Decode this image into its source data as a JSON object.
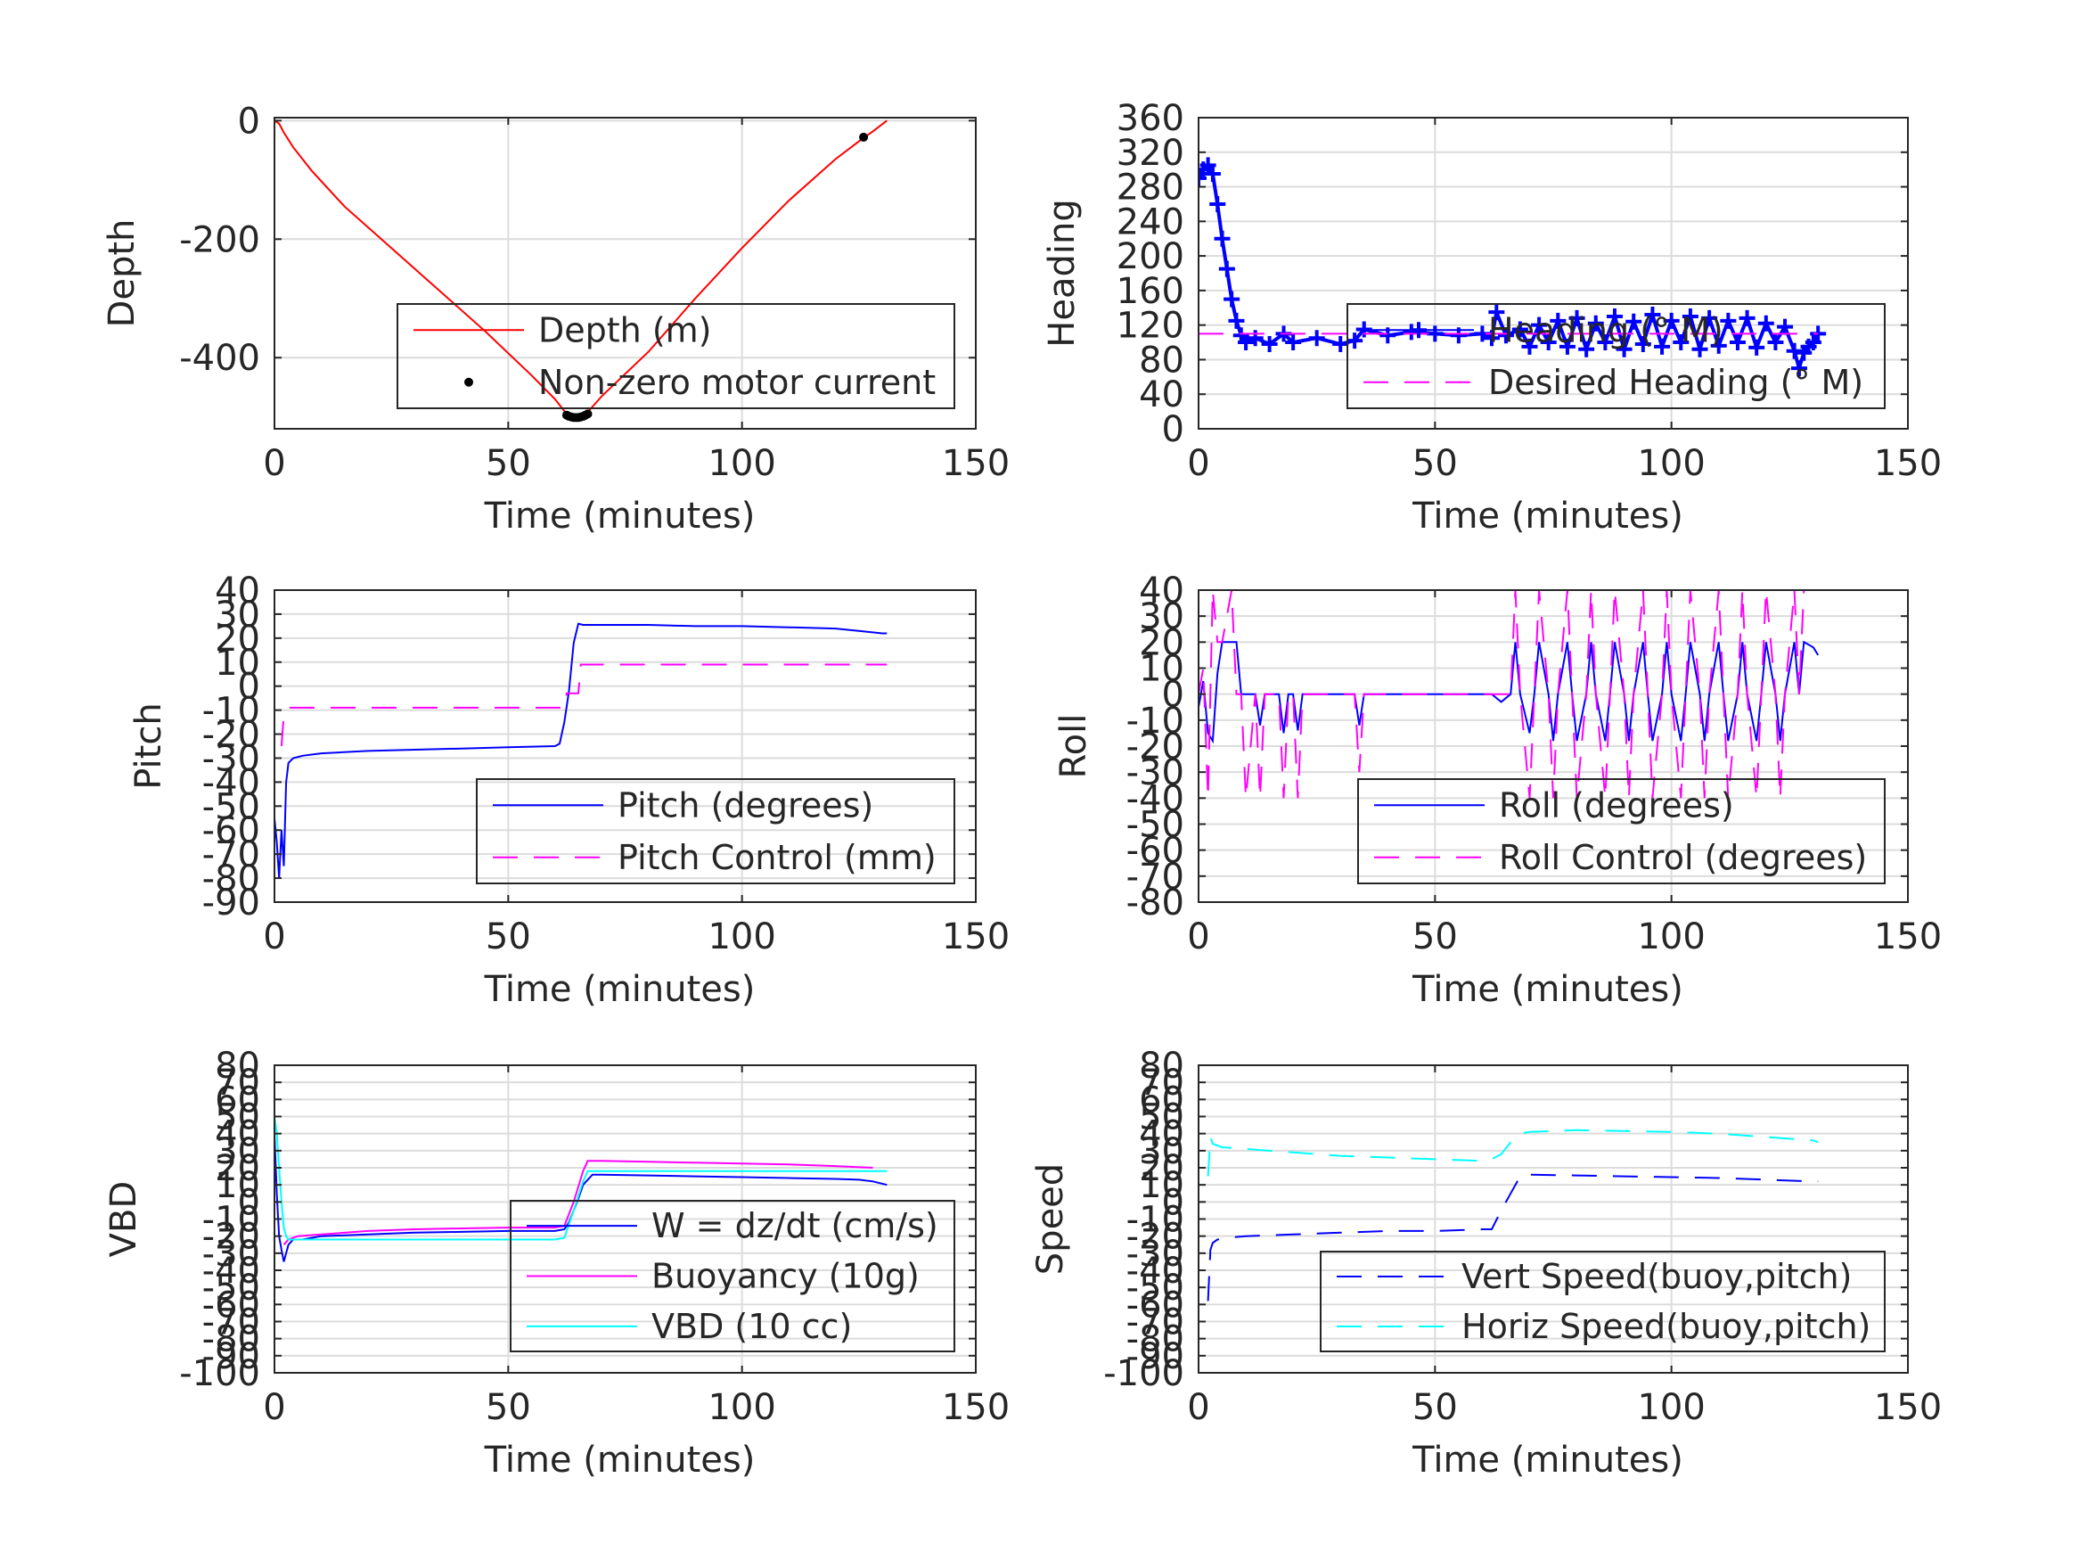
{
  "figure": {
    "background": "#ffffff",
    "grid_color": "#dcdcdc",
    "axis_color": "#262626"
  },
  "chart_data": [
    {
      "id": "depth",
      "type": "line",
      "xlabel": "Time (minutes)",
      "ylabel": "Depth",
      "xlim": [
        0,
        150
      ],
      "ylim": [
        -520,
        5
      ],
      "xticks": [
        0,
        50,
        100,
        150
      ],
      "yticks": [
        0,
        -200,
        -400
      ],
      "grid": true,
      "legend": "bottom-right",
      "series": [
        {
          "name": "Depth (m)",
          "color": "#ff0000",
          "style": "solid",
          "x": [
            0,
            1,
            2,
            4,
            8,
            15,
            25,
            35,
            45,
            55,
            60,
            62,
            63,
            64,
            65,
            66,
            67,
            70,
            80,
            90,
            100,
            110,
            120,
            125,
            128,
            131
          ],
          "y": [
            0,
            -5,
            -20,
            -45,
            -85,
            -145,
            -215,
            -285,
            -355,
            -430,
            -470,
            -490,
            -498,
            -501,
            -501,
            -498,
            -492,
            -465,
            -390,
            -300,
            -215,
            -135,
            -65,
            -35,
            -18,
            0
          ]
        },
        {
          "name": "Non-zero motor current",
          "color": "#000000",
          "style": "markers",
          "x": [
            62.5,
            63,
            63.5,
            64,
            64.5,
            65,
            65.5,
            66,
            66.5,
            67,
            126
          ],
          "y": [
            -497,
            -499,
            -500,
            -501,
            -501,
            -501,
            -500,
            -499,
            -497,
            -495,
            -28
          ]
        }
      ]
    },
    {
      "id": "heading",
      "type": "line",
      "xlabel": "Time (minutes)",
      "ylabel": "Heading",
      "xlim": [
        0,
        150
      ],
      "ylim": [
        0,
        360
      ],
      "xticks": [
        0,
        50,
        100,
        150
      ],
      "yticks": [
        0,
        40,
        80,
        120,
        160,
        200,
        240,
        280,
        320,
        360
      ],
      "grid": true,
      "legend": "bottom-right",
      "series": [
        {
          "name": "Heading (° M)",
          "color": "#0000ff",
          "style": "plus",
          "x": [
            0,
            1,
            2,
            3,
            4,
            5,
            6,
            7,
            8,
            9,
            10,
            12,
            15,
            18,
            20,
            25,
            30,
            33,
            35,
            40,
            45,
            50,
            55,
            60,
            62,
            63,
            65,
            68,
            70,
            72,
            74,
            76,
            78,
            80,
            82,
            84,
            86,
            88,
            90,
            92,
            94,
            96,
            98,
            100,
            102,
            104,
            106,
            108,
            110,
            112,
            114,
            116,
            118,
            120,
            122,
            124,
            126,
            127,
            128,
            129,
            130,
            131
          ],
          "y": [
            290,
            300,
            305,
            295,
            260,
            220,
            185,
            150,
            125,
            108,
            100,
            105,
            98,
            110,
            100,
            105,
            98,
            102,
            115,
            108,
            112,
            110,
            108,
            110,
            105,
            135,
            108,
            115,
            95,
            120,
            100,
            125,
            95,
            128,
            92,
            122,
            100,
            130,
            92,
            124,
            98,
            132,
            95,
            125,
            100,
            130,
            92,
            128,
            96,
            125,
            100,
            128,
            94,
            122,
            100,
            118,
            90,
            70,
            88,
            95,
            100,
            110
          ]
        },
        {
          "name": "Desired Heading (° M)",
          "color": "#ff00ff",
          "style": "dashed",
          "x": [
            0,
            131
          ],
          "y": [
            110,
            110
          ]
        }
      ]
    },
    {
      "id": "pitch",
      "type": "line",
      "xlabel": "Time (minutes)",
      "ylabel": "Pitch",
      "xlim": [
        0,
        150
      ],
      "ylim": [
        -90,
        40
      ],
      "xticks": [
        0,
        50,
        100,
        150
      ],
      "yticks": [
        40,
        30,
        20,
        10,
        0,
        -10,
        -20,
        -30,
        -40,
        -50,
        -60,
        -70,
        -80,
        -90
      ],
      "grid": true,
      "legend": "bottom-right",
      "series": [
        {
          "name": "Pitch (degrees)",
          "color": "#0000ff",
          "style": "solid",
          "x": [
            0,
            0.5,
            1,
            1.5,
            2,
            2.5,
            3,
            4,
            6,
            10,
            20,
            30,
            40,
            50,
            60,
            61,
            62,
            63,
            64,
            65,
            66,
            70,
            80,
            90,
            100,
            110,
            120,
            125,
            130,
            131
          ],
          "y": [
            -55,
            -65,
            -80,
            -60,
            -75,
            -40,
            -32,
            -30,
            -29,
            -28,
            -27,
            -26.5,
            -26,
            -25.5,
            -25,
            -24,
            -15,
            -2,
            18,
            26,
            25.5,
            25.5,
            25.5,
            25,
            25,
            24.5,
            24,
            23,
            22,
            22
          ]
        },
        {
          "name": "Pitch Control (mm)",
          "color": "#ff00ff",
          "style": "dashed",
          "x": [
            1.5,
            2,
            3,
            10,
            20,
            30,
            40,
            50,
            58,
            62,
            62.5,
            64,
            65,
            65.5,
            70,
            80,
            90,
            100,
            110,
            120,
            131
          ],
          "y": [
            -25,
            -12,
            -9,
            -9,
            -9,
            -9,
            -9,
            -9,
            -9,
            -9,
            -3,
            -3,
            -3,
            9,
            9,
            9,
            9,
            9,
            9,
            9,
            9
          ]
        }
      ]
    },
    {
      "id": "roll",
      "type": "line",
      "xlabel": "Time (minutes)",
      "ylabel": "Roll",
      "xlim": [
        0,
        150
      ],
      "ylim": [
        -80,
        40
      ],
      "xticks": [
        0,
        50,
        100,
        150
      ],
      "yticks": [
        40,
        30,
        20,
        10,
        0,
        -10,
        -20,
        -30,
        -40,
        -50,
        -60,
        -70,
        -80
      ],
      "grid": true,
      "legend": "bottom-right",
      "series": [
        {
          "name": "Roll (degrees)",
          "color": "#0000ff",
          "style": "solid",
          "x": [
            0,
            1,
            2,
            3,
            4,
            5,
            6,
            8,
            9,
            10,
            12,
            13,
            14,
            15,
            16,
            17,
            18,
            19,
            20,
            21,
            22,
            25,
            30,
            33,
            34,
            35,
            40,
            50,
            60,
            62,
            64,
            66,
            67,
            68,
            70,
            71,
            72,
            74,
            75,
            76,
            78,
            79,
            80,
            82,
            83,
            84,
            86,
            87,
            88,
            90,
            91,
            92,
            94,
            95,
            96,
            98,
            99,
            100,
            102,
            103,
            104,
            106,
            107,
            108,
            110,
            111,
            112,
            114,
            115,
            116,
            118,
            119,
            120,
            122,
            123,
            124,
            126,
            127,
            128,
            130,
            131
          ],
          "y": [
            -5,
            5,
            -15,
            -18,
            8,
            20,
            20,
            20,
            0,
            0,
            0,
            -12,
            0,
            0,
            0,
            0,
            -15,
            0,
            0,
            -14,
            0,
            0,
            0,
            0,
            -12,
            0,
            0,
            0,
            0,
            0,
            -3,
            0,
            20,
            0,
            -15,
            0,
            20,
            0,
            -18,
            0,
            20,
            0,
            -18,
            0,
            20,
            0,
            -18,
            0,
            20,
            0,
            -18,
            0,
            20,
            0,
            -18,
            0,
            20,
            0,
            -18,
            0,
            20,
            0,
            -18,
            0,
            20,
            0,
            -18,
            0,
            20,
            0,
            -18,
            0,
            20,
            0,
            -18,
            0,
            20,
            0,
            20,
            18,
            15
          ]
        },
        {
          "name": "Roll Control (degrees)",
          "color": "#ff00ff",
          "style": "dashed",
          "x": [
            0,
            1,
            2,
            3,
            4,
            5,
            7,
            8,
            9,
            10,
            12,
            13,
            14,
            15,
            16,
            17,
            18,
            19,
            20,
            21,
            22,
            25,
            30,
            33,
            34,
            35,
            40,
            50,
            60,
            64,
            66,
            67,
            68,
            70,
            71,
            72,
            74,
            75,
            76,
            78,
            79,
            80,
            82,
            83,
            84,
            86,
            87,
            88,
            90,
            91,
            92,
            94,
            95,
            96,
            98,
            99,
            100,
            102,
            103,
            104,
            106,
            107,
            108,
            110,
            111,
            112,
            114,
            115,
            116,
            118,
            119,
            120,
            122,
            123,
            124,
            126,
            127,
            128,
            131
          ],
          "y": [
            0,
            10,
            -40,
            40,
            20,
            20,
            40,
            0,
            0,
            -40,
            0,
            -40,
            0,
            0,
            0,
            0,
            -40,
            0,
            0,
            -40,
            0,
            0,
            0,
            0,
            -30,
            0,
            0,
            0,
            0,
            0,
            0,
            40,
            0,
            -40,
            0,
            40,
            0,
            -40,
            0,
            40,
            0,
            -40,
            0,
            40,
            0,
            -40,
            0,
            40,
            0,
            -40,
            0,
            40,
            0,
            -40,
            0,
            40,
            0,
            -40,
            0,
            40,
            0,
            -40,
            0,
            40,
            0,
            -40,
            0,
            40,
            0,
            -40,
            0,
            40,
            0,
            -40,
            0,
            40,
            0,
            40,
            40
          ]
        }
      ]
    },
    {
      "id": "vbd",
      "type": "line",
      "xlabel": "Time (minutes)",
      "ylabel": "VBD",
      "xlim": [
        0,
        150
      ],
      "ylim": [
        -100,
        80
      ],
      "xticks": [
        0,
        50,
        100,
        150
      ],
      "yticks": [
        80,
        70,
        60,
        50,
        40,
        30,
        20,
        10,
        0,
        -10,
        -20,
        -30,
        -40,
        -50,
        -60,
        -70,
        -80,
        -90,
        -100
      ],
      "grid": true,
      "legend": "bottom-right",
      "series": [
        {
          "name": "W = dz/dt (cm/s)",
          "color": "#0000ff",
          "style": "solid",
          "x": [
            0,
            0.5,
            1,
            1.5,
            2,
            2.5,
            3,
            4,
            6,
            10,
            20,
            30,
            40,
            50,
            60,
            62,
            63,
            64,
            65,
            66,
            68,
            70,
            80,
            90,
            100,
            110,
            120,
            125,
            128,
            131
          ],
          "y": [
            40,
            5,
            -20,
            -28,
            -35,
            -30,
            -25,
            -22,
            -22,
            -20,
            -19,
            -18,
            -17.5,
            -17,
            -17,
            -16,
            -12,
            -5,
            2,
            10,
            16,
            16,
            15.5,
            15,
            14.5,
            14,
            13.5,
            13,
            12,
            10
          ]
        },
        {
          "name": "Buoyancy (10g)",
          "color": "#ff00ff",
          "style": "solid",
          "x": [
            2,
            3,
            5,
            10,
            20,
            30,
            40,
            50,
            60,
            62,
            64,
            66,
            67,
            70,
            80,
            90,
            100,
            110,
            120,
            128
          ],
          "y": [
            -25,
            -22,
            -20,
            -19,
            -17,
            -16,
            -15.5,
            -15,
            -15,
            -14,
            0,
            18,
            24,
            24,
            23.5,
            23,
            22.5,
            22,
            21,
            20
          ]
        },
        {
          "name": "VBD (10 cc)",
          "color": "#00ffff",
          "style": "solid",
          "x": [
            0,
            0.5,
            1,
            1.5,
            2,
            2.5,
            3,
            5,
            10,
            20,
            30,
            40,
            50,
            60,
            62,
            64,
            66,
            67,
            70,
            80,
            90,
            100,
            110,
            120,
            131
          ],
          "y": [
            50,
            40,
            20,
            0,
            -15,
            -20,
            -22,
            -22,
            -22,
            -22,
            -22,
            -22,
            -22,
            -22,
            -21,
            -5,
            12,
            18,
            18,
            18,
            18,
            18,
            18,
            18,
            18
          ]
        }
      ]
    },
    {
      "id": "speed",
      "type": "line",
      "xlabel": "Time (minutes)",
      "ylabel": "Speed",
      "xlim": [
        0,
        150
      ],
      "ylim": [
        -100,
        80
      ],
      "xticks": [
        0,
        50,
        100,
        150
      ],
      "yticks": [
        80,
        70,
        60,
        50,
        40,
        30,
        20,
        10,
        0,
        -10,
        -20,
        -30,
        -40,
        -50,
        -60,
        -70,
        -80,
        -90,
        -100
      ],
      "grid": true,
      "legend": "bottom-right",
      "series": [
        {
          "name": "Vert Speed(buoy,pitch)",
          "color": "#0000ff",
          "style": "dashed",
          "x": [
            2,
            2.5,
            3,
            4,
            6,
            10,
            20,
            30,
            40,
            50,
            60,
            62,
            64,
            66,
            68,
            70,
            80,
            90,
            100,
            110,
            120,
            130,
            131
          ],
          "y": [
            -58,
            -28,
            -24,
            -22,
            -21,
            -20,
            -19,
            -18,
            -17,
            -17,
            -16,
            -16,
            -5,
            5,
            15,
            16,
            15.5,
            15,
            14.5,
            14,
            13,
            12,
            12
          ]
        },
        {
          "name": "Horiz Speed(buoy,pitch)",
          "color": "#00ffff",
          "style": "dashed",
          "x": [
            2,
            2.5,
            3,
            5,
            10,
            20,
            30,
            40,
            50,
            60,
            62,
            64,
            66,
            68,
            70,
            80,
            90,
            100,
            110,
            120,
            130,
            131
          ],
          "y": [
            15,
            38,
            34,
            32,
            31,
            29,
            27,
            26,
            25,
            24,
            25,
            28,
            35,
            40,
            41,
            42,
            41.5,
            41,
            40,
            38,
            36,
            35
          ]
        }
      ]
    }
  ]
}
